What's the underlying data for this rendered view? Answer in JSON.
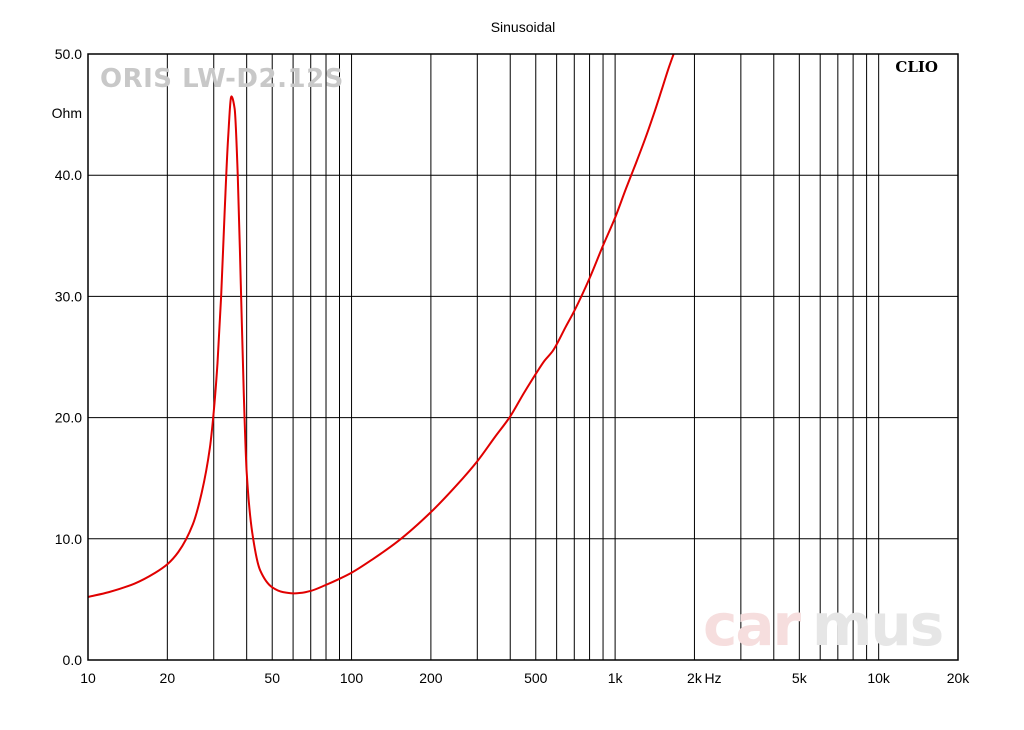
{
  "colors": {
    "curve": "#e00000",
    "grid": "#000000",
    "axis": "#000000"
  },
  "chart_data": {
    "type": "line",
    "title": "Sinusoidal",
    "brand": "CLIO",
    "model_label": "ORIS LW-D2.12S",
    "watermark": [
      "car",
      "mus"
    ],
    "ylabel": "Ohm",
    "xunit": "Hz",
    "xscale": "log",
    "xlim": [
      10,
      20000
    ],
    "ylim": [
      0,
      50
    ],
    "grid": true,
    "x_ticks": [
      {
        "v": 10,
        "label": "10"
      },
      {
        "v": 20,
        "label": "20"
      },
      {
        "v": 50,
        "label": "50"
      },
      {
        "v": 100,
        "label": "100"
      },
      {
        "v": 200,
        "label": "200"
      },
      {
        "v": 500,
        "label": "500"
      },
      {
        "v": 1000,
        "label": "1k"
      },
      {
        "v": 2000,
        "label": "2k"
      },
      {
        "v": 5000,
        "label": "5k"
      },
      {
        "v": 10000,
        "label": "10k"
      },
      {
        "v": 20000,
        "label": "20k"
      }
    ],
    "y_ticks": [
      {
        "v": 0,
        "label": "0.0"
      },
      {
        "v": 10,
        "label": "10.0"
      },
      {
        "v": 20,
        "label": "20.0"
      },
      {
        "v": 30,
        "label": "30.0"
      },
      {
        "v": 40,
        "label": "40.0"
      },
      {
        "v": 50,
        "label": "50.0"
      }
    ],
    "series": [
      {
        "x": [
          10,
          12,
          15,
          18,
          20,
          22,
          25,
          27,
          29,
          30,
          31,
          32,
          33,
          34,
          35,
          36,
          37,
          38,
          39,
          40,
          42,
          45,
          50,
          55,
          60,
          65,
          70,
          80,
          90,
          100,
          120,
          150,
          200,
          250,
          300,
          350,
          400,
          450,
          500,
          540,
          580,
          650,
          700,
          800,
          900,
          1000,
          1100,
          1200,
          1300,
          1400,
          1500,
          1600,
          1700
        ],
        "y": [
          5.2,
          5.6,
          6.3,
          7.2,
          7.9,
          8.9,
          11.2,
          13.8,
          17.5,
          20.5,
          24.5,
          30,
          37,
          43,
          46.5,
          45.5,
          40,
          31,
          22,
          15.5,
          10.5,
          7.4,
          6.0,
          5.6,
          5.5,
          5.55,
          5.7,
          6.2,
          6.7,
          7.2,
          8.3,
          9.8,
          12.2,
          14.4,
          16.4,
          18.4,
          20.1,
          22,
          23.6,
          24.7,
          25.5,
          27.5,
          28.8,
          31.5,
          34.2,
          36.5,
          38.9,
          41,
          43,
          45,
          47,
          48.9,
          50.5
        ]
      }
    ]
  }
}
